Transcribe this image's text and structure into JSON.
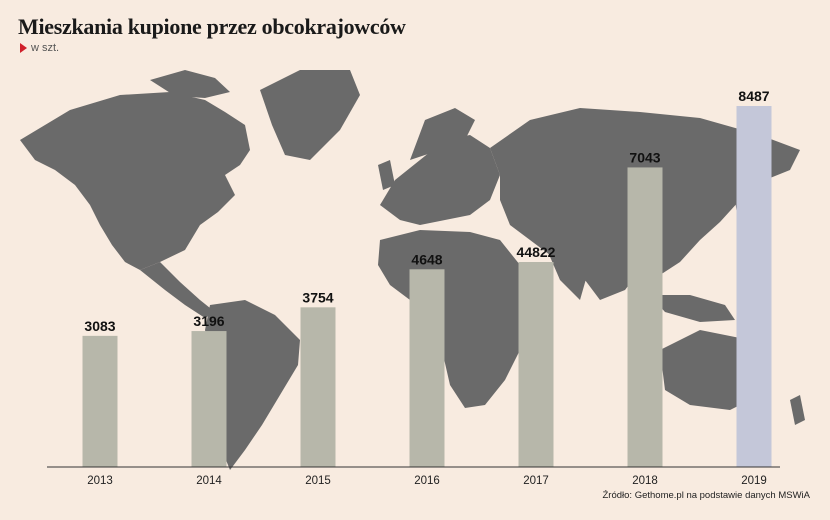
{
  "title": "Mieszkania kupione przez obcokrajowców",
  "subtitle": "w szt.",
  "source": "Źródło: Gethome.pl na podstawie danych MSWiA",
  "colors": {
    "background": "#f8ebe0",
    "map": "#6a6a6a",
    "bar": "#b7b7aa",
    "bar_highlight": "#c4c7d9",
    "accent": "#d0202b"
  },
  "chart_data": {
    "type": "bar",
    "categories": [
      "2013",
      "2014",
      "2015",
      "2016",
      "2017",
      "2018",
      "2019"
    ],
    "values": [
      3083,
      3196,
      3754,
      4648,
      44822,
      7043,
      8487
    ],
    "data_labels": [
      "3083",
      "3196",
      "3754",
      "4648",
      "44822",
      "7043",
      "8487"
    ],
    "highlight_index": 6,
    "ylim": [
      0,
      9000
    ],
    "grid": false,
    "legend": "none",
    "background_image": "world-map"
  }
}
